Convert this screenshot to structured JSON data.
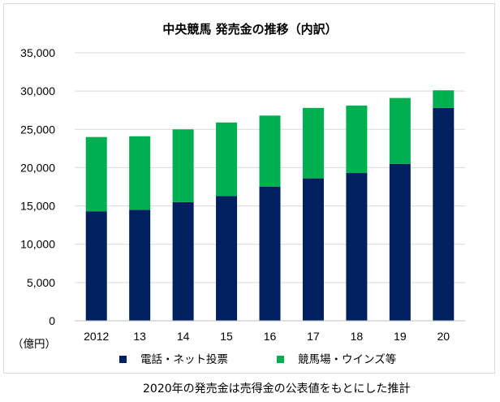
{
  "chart_data": {
    "type": "bar",
    "stacked": true,
    "title": "中央競馬 発売金の推移（内訳）",
    "unit_label": "（億円）",
    "categories": [
      "2012",
      "13",
      "14",
      "15",
      "16",
      "17",
      "18",
      "19",
      "20"
    ],
    "series": [
      {
        "name": "電話・ネット投票",
        "color": "#002060",
        "values": [
          14300,
          14500,
          15500,
          16300,
          17500,
          18600,
          19300,
          20500,
          27800
        ]
      },
      {
        "name": "競馬場・ウインズ等",
        "color": "#00b050",
        "values": [
          9700,
          9600,
          9500,
          9600,
          9300,
          9200,
          8800,
          8600,
          2300
        ]
      }
    ],
    "ylim": [
      0,
      35000
    ],
    "yticks": [
      "0",
      "5,000",
      "10,000",
      "15,000",
      "20,000",
      "25,000",
      "30,000",
      "35,000"
    ],
    "ytick_values": [
      0,
      5000,
      10000,
      15000,
      20000,
      25000,
      30000,
      35000
    ],
    "grid": true,
    "legend_position": "bottom",
    "xlabel": "",
    "ylabel": ""
  },
  "footnote": "2020年の発売金は売得金の公表値をもとにした推計",
  "colors": {
    "grid": "#d9d9d9",
    "axis": "#bfbfbf"
  }
}
